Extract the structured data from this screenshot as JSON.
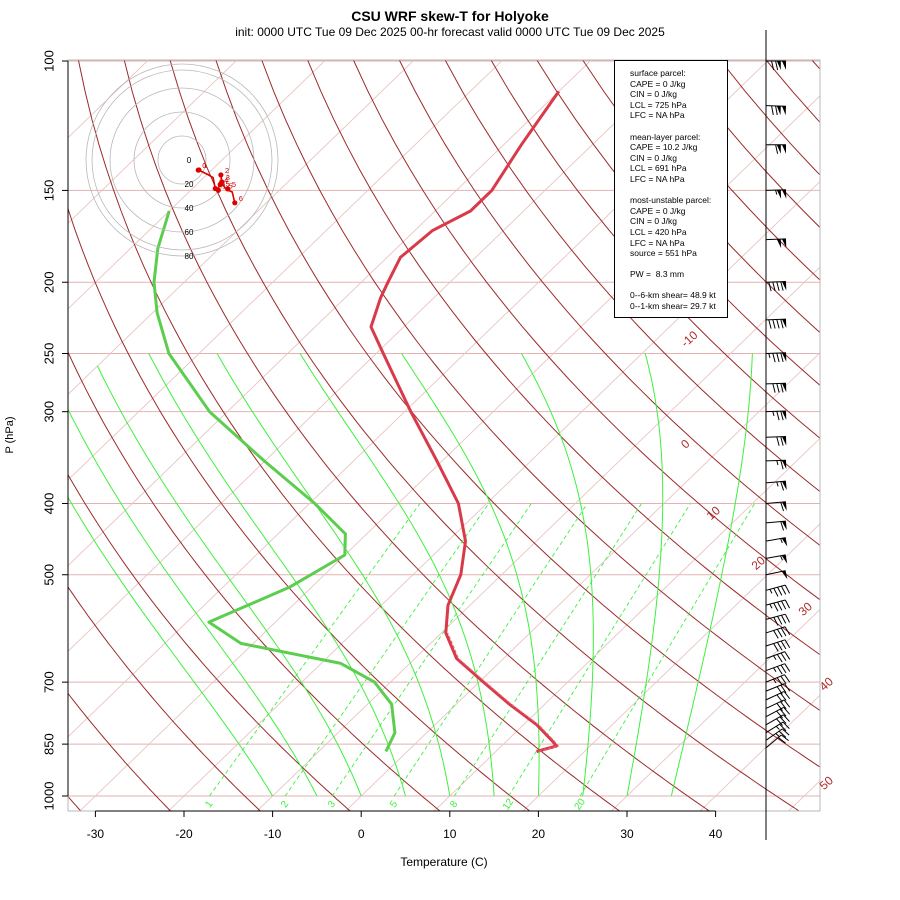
{
  "title": "CSU WRF skew-T for Holyoke",
  "subtitle": "init: 0000 UTC Tue 09 Dec 2025    00-hr forecast valid 0000 UTC Tue 09 Dec 2025",
  "chart_data": {
    "type": "line",
    "xlabel": "Temperature (C)",
    "ylabel": "P (hPa)",
    "xlim": [
      -33,
      51
    ],
    "ylim": [
      1050,
      100
    ],
    "y_scale": "log (skew-T)",
    "x_ticks": [
      "-30",
      "-20",
      "-10",
      "0",
      "10",
      "20",
      "30",
      "40"
    ],
    "y_ticks": [
      "100",
      "150",
      "200",
      "250",
      "300",
      "400",
      "500",
      "700",
      "850",
      "1000"
    ],
    "isotherm_labels": [
      "-10",
      "0",
      "10",
      "20",
      "30",
      "40",
      "50"
    ],
    "mixing_ratio_labels": [
      "1",
      "2",
      "3",
      "5",
      "8",
      "12",
      "20"
    ],
    "series": [
      {
        "color": "#d93a4a",
        "points": [
          [
            870,
            14.6
          ],
          [
            855,
            16.2
          ],
          [
            840,
            15.0
          ],
          [
            800,
            11.5
          ],
          [
            750,
            6.0
          ],
          [
            700,
            0.5
          ],
          [
            650,
            -5.3
          ],
          [
            600,
            -9.5
          ],
          [
            550,
            -12.5
          ],
          [
            500,
            -14.6
          ],
          [
            450,
            -18.0
          ],
          [
            400,
            -23.2
          ],
          [
            350,
            -30.6
          ],
          [
            300,
            -39.3
          ],
          [
            250,
            -49.2
          ],
          [
            230,
            -53.7
          ],
          [
            210,
            -56.0
          ],
          [
            200,
            -57.0
          ],
          [
            185,
            -58.5
          ],
          [
            170,
            -58.0
          ],
          [
            160,
            -56.0
          ],
          [
            150,
            -56.0
          ],
          [
            130,
            -58.0
          ],
          [
            110,
            -60.0
          ]
        ]
      },
      {
        "color": "#5ccd4e",
        "points": [
          [
            870,
            -2.4
          ],
          [
            820,
            -3.6
          ],
          [
            750,
            -7.3
          ],
          [
            700,
            -11.8
          ],
          [
            660,
            -17.8
          ],
          [
            620,
            -31.4
          ],
          [
            580,
            -37.5
          ],
          [
            520,
            -32.5
          ],
          [
            470,
            -30.0
          ],
          [
            440,
            -32.4
          ],
          [
            400,
            -39.4
          ],
          [
            350,
            -50.1
          ],
          [
            300,
            -62.0
          ],
          [
            250,
            -73.4
          ],
          [
            220,
            -79.5
          ],
          [
            200,
            -83.4
          ],
          [
            180,
            -86.9
          ],
          [
            160,
            -90.0
          ]
        ]
      }
    ],
    "hodograph": {
      "rings": [
        "20",
        "40",
        "60",
        "80"
      ],
      "center_label": "0",
      "points": [
        {
          "label": "0",
          "u": -1,
          "v": -1.2
        },
        {
          "label": "1",
          "u": -0.6,
          "v": -1.1
        },
        {
          "label": "2",
          "u": 12,
          "v": -4
        },
        {
          "label": "3",
          "u": 12.5,
          "v": -8
        },
        {
          "label": "4",
          "u": 11.6,
          "v": -9.5
        },
        {
          "label": "5",
          "u": 16,
          "v": -12
        },
        {
          "label": "6",
          "u": 20,
          "v": -20
        },
        {
          "label": "0.5",
          "u": 8.8,
          "v": -11.8
        },
        {
          "label": "1.5",
          "u": 10.5,
          "v": -12.8
        }
      ],
      "path": [
        [
          -1,
          -1.2
        ],
        [
          1,
          -2
        ],
        [
          5,
          -4
        ],
        [
          7.5,
          -5.5
        ],
        [
          8.8,
          -11.8
        ],
        [
          10.5,
          -11.5
        ],
        [
          11.6,
          -9.5
        ],
        [
          12.5,
          -8
        ],
        [
          12,
          -4
        ],
        [
          12.3,
          -7
        ],
        [
          13.3,
          -9.8
        ],
        [
          15,
          -12.3
        ],
        [
          18.5,
          -13.8
        ],
        [
          20,
          -20
        ]
      ]
    }
  },
  "info": {
    "surface": [
      "surface parcel:",
      "CAPE = 0 J/kg",
      "CIN = 0 J/kg",
      "LCL = 725 hPa",
      "LFC = NA hPa"
    ],
    "mean_layer": [
      "mean-layer parcel:",
      "CAPE = 10.2 J/kg",
      "CIN = 0 J/kg",
      "LCL = 691 hPa",
      "LFC = NA hPa"
    ],
    "most_unstable": [
      "most-unstable parcel:",
      "CAPE = 0 J/kg",
      "CIN = 0 J/kg",
      "LCL = 420 hPa",
      "LFC = NA hPa",
      "source = 551 hPa"
    ],
    "pw": "PW =  8.3 mm",
    "shear": [
      "0--6-km shear= 48.9 kt",
      "0--1-km shear= 29.7 kt"
    ]
  },
  "wind_barbs": [
    {
      "p": 100,
      "speed": 120,
      "dir": 270
    },
    {
      "p": 115,
      "speed": 120,
      "dir": 272
    },
    {
      "p": 130,
      "speed": 110,
      "dir": 270
    },
    {
      "p": 150,
      "speed": 105,
      "dir": 268
    },
    {
      "p": 175,
      "speed": 100,
      "dir": 268
    },
    {
      "p": 200,
      "speed": 90,
      "dir": 268
    },
    {
      "p": 225,
      "speed": 90,
      "dir": 268
    },
    {
      "p": 250,
      "speed": 85,
      "dir": 268
    },
    {
      "p": 275,
      "speed": 80,
      "dir": 268
    },
    {
      "p": 300,
      "speed": 75,
      "dir": 268
    },
    {
      "p": 325,
      "speed": 70,
      "dir": 268
    },
    {
      "p": 350,
      "speed": 65,
      "dir": 268
    },
    {
      "p": 375,
      "speed": 65,
      "dir": 265
    },
    {
      "p": 400,
      "speed": 60,
      "dir": 265
    },
    {
      "p": 425,
      "speed": 60,
      "dir": 265
    },
    {
      "p": 450,
      "speed": 55,
      "dir": 260
    },
    {
      "p": 475,
      "speed": 55,
      "dir": 260
    },
    {
      "p": 500,
      "speed": 50,
      "dir": 258
    },
    {
      "p": 525,
      "speed": 45,
      "dir": 255
    },
    {
      "p": 550,
      "speed": 45,
      "dir": 255
    },
    {
      "p": 575,
      "speed": 40,
      "dir": 255
    },
    {
      "p": 600,
      "speed": 40,
      "dir": 252
    },
    {
      "p": 625,
      "speed": 40,
      "dir": 252
    },
    {
      "p": 650,
      "speed": 35,
      "dir": 250
    },
    {
      "p": 675,
      "speed": 35,
      "dir": 250
    },
    {
      "p": 700,
      "speed": 35,
      "dir": 248
    },
    {
      "p": 720,
      "speed": 30,
      "dir": 248
    },
    {
      "p": 740,
      "speed": 30,
      "dir": 245
    },
    {
      "p": 760,
      "speed": 30,
      "dir": 245
    },
    {
      "p": 780,
      "speed": 30,
      "dir": 242
    },
    {
      "p": 800,
      "speed": 30,
      "dir": 240
    },
    {
      "p": 820,
      "speed": 25,
      "dir": 238
    },
    {
      "p": 840,
      "speed": 25,
      "dir": 235
    },
    {
      "p": 860,
      "speed": 20,
      "dir": 230
    }
  ]
}
